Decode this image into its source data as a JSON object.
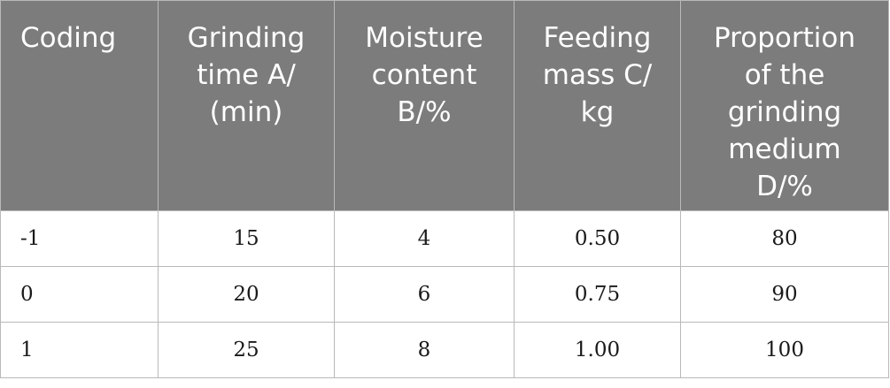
{
  "table": {
    "headers": [
      "Coding",
      "Grinding\ntime A/\n(min)",
      "Moisture\ncontent\nB/%",
      "Feeding\nmass C/\nkg",
      "Proportion\nof the\ngrinding\nmedium\nD/%"
    ],
    "rows": [
      [
        "-1",
        "15",
        "4",
        "0.50",
        "80"
      ],
      [
        "0",
        "20",
        "6",
        "0.75",
        "90"
      ],
      [
        "1",
        "25",
        "8",
        "1.00",
        "100"
      ]
    ]
  },
  "colors": {
    "header_background": "#7c7c7c",
    "header_text": "#ffffff",
    "border": "#b9b9b9",
    "cell_text": "#1a1a1a"
  }
}
